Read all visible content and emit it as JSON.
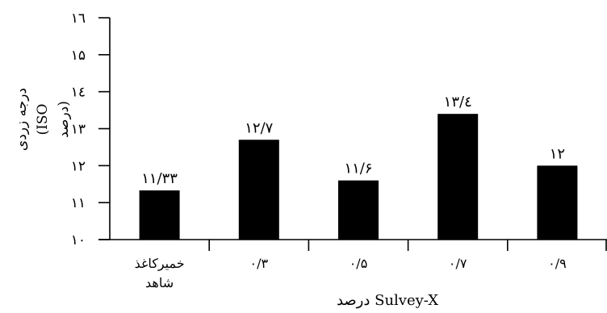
{
  "chart_data": {
    "type": "bar",
    "categories": [
      [
        "خمیرکاغذ",
        "شاهد"
      ],
      [
        "۰/۳"
      ],
      [
        "۰/۵"
      ],
      [
        "۰/۷"
      ],
      [
        "۰/۹"
      ]
    ],
    "values": [
      11.33,
      12.7,
      11.6,
      13.4,
      12
    ],
    "data_labels": [
      "۱۱/۳۳",
      "۱۲/۷",
      "۱۱/۶",
      "۱۳/٤",
      "۱۲"
    ],
    "yticks": [
      10,
      11,
      12,
      13,
      14,
      15,
      16
    ],
    "ytick_labels": [
      "۱۰",
      "۱۱",
      "۱۲",
      "۱۳",
      "۱٤",
      "۱۵",
      "۱٦"
    ],
    "ylim": [
      10,
      16
    ],
    "ylabel_lines": [
      "درجه زردی",
      "(ISO درصد)"
    ],
    "xlabel": "درصد Sulvey-X",
    "grid": false,
    "bar_color": "#000000"
  }
}
